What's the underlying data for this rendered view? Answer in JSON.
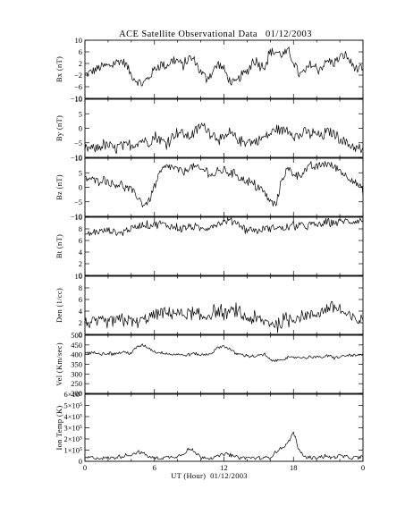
{
  "chart_data": {
    "type": "line",
    "title": "ACE Satellite Observational Data   01/12/2003",
    "xlabel": "UT (Hour)  01/12/2003",
    "x_tick_labels": [
      "0",
      "6",
      "12",
      "18",
      "0"
    ],
    "xlim": [
      0,
      24
    ],
    "grid": false,
    "panels": [
      {
        "ylabel": "Bx (nT)",
        "ylim": [
          -10,
          10
        ],
        "y_ticks": [
          -10,
          -6,
          -2,
          2,
          6,
          10
        ],
        "y_tick_labels": [
          "−10",
          "−6",
          "−2",
          "2",
          "6",
          "10"
        ],
        "x": [
          0,
          0.5,
          1,
          1.5,
          2,
          2.5,
          3,
          3.5,
          4,
          4.5,
          5,
          5.5,
          6,
          6.5,
          7,
          7.5,
          8,
          8.5,
          9,
          9.5,
          10,
          10.5,
          11,
          11.5,
          12,
          12.5,
          13,
          13.5,
          14,
          14.5,
          15,
          15.5,
          16,
          16.5,
          17,
          17.5,
          18,
          18.5,
          19,
          19.5,
          20,
          20.5,
          21,
          21.5,
          22,
          22.5,
          23,
          23.5,
          24
        ],
        "y": [
          -2,
          -1,
          0,
          1,
          1,
          2,
          3,
          2,
          -2,
          -4,
          -5,
          -3,
          0,
          2,
          1,
          3,
          3,
          1,
          4,
          3,
          -1,
          -3,
          -1,
          2,
          0,
          -4,
          -5,
          -2,
          -1,
          3,
          2,
          1,
          6,
          6,
          5,
          6,
          3,
          -2,
          -1,
          2,
          0,
          1,
          3,
          2,
          4,
          5,
          2,
          0,
          -1
        ],
        "noise": 1.5
      },
      {
        "ylabel": "By (nT)",
        "ylim": [
          -10,
          10
        ],
        "y_ticks": [
          -10,
          -5,
          0,
          5,
          10
        ],
        "y_tick_labels": [
          "−10",
          "−5",
          "0",
          "5",
          "10"
        ],
        "x": [
          0,
          0.5,
          1,
          1.5,
          2,
          2.5,
          3,
          3.5,
          4,
          4.5,
          5,
          5.5,
          6,
          6.5,
          7,
          7.5,
          8,
          8.5,
          9,
          9.5,
          10,
          10.5,
          11,
          11.5,
          12,
          12.5,
          13,
          13.5,
          14,
          14.5,
          15,
          15.5,
          16,
          16.5,
          17,
          17.5,
          18,
          18.5,
          19,
          19.5,
          20,
          20.5,
          21,
          21.5,
          22,
          22.5,
          23,
          23.5,
          24
        ],
        "y": [
          -7,
          -7,
          -7,
          -6,
          -6,
          -7,
          -6,
          -6,
          -6,
          -5,
          -4,
          -5,
          -3,
          -4,
          -5,
          -3,
          -1,
          -2,
          -3,
          -1,
          1,
          0,
          -2,
          -3,
          -4,
          -2,
          -3,
          -5,
          -4,
          -5,
          -4,
          -3,
          -2,
          0,
          -1,
          0,
          -2,
          -3,
          -1,
          -2,
          -2,
          -3,
          -1,
          -2,
          -3,
          -5,
          -6,
          -7,
          -8
        ],
        "noise": 1.6
      },
      {
        "ylabel": "Bz (nT)",
        "ylim": [
          -10,
          10
        ],
        "y_ticks": [
          -10,
          -5,
          0,
          5,
          10
        ],
        "y_tick_labels": [
          "−10",
          "−5",
          "0",
          "5",
          "10"
        ],
        "x": [
          0,
          0.5,
          1,
          1.5,
          2,
          2.5,
          3,
          3.5,
          4,
          4.5,
          5,
          5.5,
          6,
          6.5,
          7,
          7.5,
          8,
          8.5,
          9,
          9.5,
          10,
          10.5,
          11,
          11.5,
          12,
          12.5,
          13,
          13.5,
          14,
          14.5,
          15,
          15.5,
          16,
          16.5,
          17,
          17.5,
          18,
          18.5,
          19,
          19.5,
          20,
          20.5,
          21,
          21.5,
          22,
          22.5,
          23,
          23.5,
          24
        ],
        "y": [
          3,
          3,
          2,
          3,
          2,
          1,
          1,
          0,
          -1,
          -3,
          -6,
          -5,
          0,
          5,
          7,
          7,
          6,
          5,
          7,
          7,
          6,
          6,
          4,
          5,
          6,
          5,
          5,
          3,
          2,
          1,
          0,
          -2,
          -5,
          -6,
          3,
          6,
          5,
          4,
          6,
          7,
          7,
          8,
          8,
          7,
          6,
          4,
          3,
          1,
          -1
        ],
        "noise": 1.3
      },
      {
        "ylabel": "Bt (nT)",
        "ylim": [
          0,
          10
        ],
        "y_ticks": [
          0,
          2,
          4,
          6,
          8,
          10
        ],
        "y_tick_labels": [
          "0",
          "2",
          "4",
          "6",
          "8",
          "10"
        ],
        "x": [
          0,
          0.5,
          1,
          1.5,
          2,
          2.5,
          3,
          3.5,
          4,
          4.5,
          5,
          5.5,
          6,
          6.5,
          7,
          7.5,
          8,
          8.5,
          9,
          9.5,
          10,
          10.5,
          11,
          11.5,
          12,
          12.5,
          13,
          13.5,
          14,
          14.5,
          15,
          15.5,
          16,
          16.5,
          17,
          17.5,
          18,
          18.5,
          19,
          19.5,
          20,
          20.5,
          21,
          21.5,
          22,
          22.5,
          23,
          23.5,
          24
        ],
        "y": [
          7,
          7.2,
          7.5,
          7.6,
          7.8,
          7.5,
          7.2,
          7.8,
          8,
          8.4,
          8.8,
          8.5,
          8.8,
          9,
          8.6,
          8.4,
          8.2,
          8,
          8.4,
          8.2,
          8,
          8.2,
          8.6,
          8.9,
          9.2,
          9.5,
          9.3,
          8.5,
          7.8,
          8,
          7.5,
          8.2,
          8,
          8.4,
          8,
          8.2,
          8.5,
          8.6,
          8.4,
          8.8,
          8.6,
          8.9,
          9,
          9.1,
          9.2,
          9.4,
          9.2,
          9.4,
          9.5
        ],
        "noise": 0.55
      },
      {
        "ylabel": "Den (1/cc)",
        "ylim": [
          0,
          10
        ],
        "y_ticks": [
          0,
          2,
          4,
          6,
          8,
          10
        ],
        "y_tick_labels": [
          "0",
          "2",
          "4",
          "6",
          "8",
          "10"
        ],
        "x": [
          0,
          0.5,
          1,
          1.5,
          2,
          2.5,
          3,
          3.5,
          4,
          4.5,
          5,
          5.5,
          6,
          6.5,
          7,
          7.5,
          8,
          8.5,
          9,
          9.5,
          10,
          10.5,
          11,
          11.5,
          12,
          12.5,
          13,
          13.5,
          14,
          14.5,
          15,
          15.5,
          16,
          16.5,
          17,
          17.5,
          18,
          18.5,
          19,
          19.5,
          20,
          20.5,
          21,
          21.5,
          22,
          22.5,
          23,
          23.5,
          24
        ],
        "y": [
          2,
          2,
          2,
          2.2,
          2,
          2.2,
          2.4,
          2.6,
          2.2,
          2,
          2.4,
          3,
          3.2,
          3.8,
          3.4,
          4,
          3.6,
          3.4,
          3.6,
          3.2,
          2.8,
          3.2,
          3.6,
          4,
          3.4,
          3.8,
          4,
          3.2,
          2.8,
          2.6,
          2.4,
          2.2,
          2,
          1.8,
          2,
          2.6,
          2.8,
          3,
          3.4,
          3.2,
          3.6,
          4,
          4.6,
          4.8,
          4.2,
          3.4,
          2.8,
          2.4,
          2.6
        ],
        "noise": 1.0
      },
      {
        "ylabel": "Vel (Km/sec)",
        "ylim": [
          200,
          500
        ],
        "y_ticks": [
          200,
          250,
          300,
          350,
          400,
          450,
          500
        ],
        "y_tick_labels": [
          "200",
          "250",
          "300",
          "350",
          "400",
          "450",
          "500"
        ],
        "x": [
          0,
          0.5,
          1,
          1.5,
          2,
          2.5,
          3,
          3.5,
          4,
          4.5,
          5,
          5.5,
          6,
          6.5,
          7,
          7.5,
          8,
          8.5,
          9,
          9.5,
          10,
          10.5,
          11,
          11.5,
          12,
          12.5,
          13,
          13.5,
          14,
          14.5,
          15,
          15.5,
          16,
          16.5,
          17,
          17.5,
          18,
          18.5,
          19,
          19.5,
          20,
          20.5,
          21,
          21.5,
          22,
          22.5,
          23,
          23.5,
          24
        ],
        "y": [
          410,
          408,
          412,
          405,
          408,
          403,
          410,
          412,
          408,
          440,
          450,
          435,
          415,
          410,
          408,
          400,
          404,
          395,
          402,
          406,
          398,
          401,
          410,
          438,
          445,
          430,
          405,
          400,
          396,
          390,
          395,
          400,
          372,
          368,
          378,
          381,
          385,
          388,
          382,
          392,
          386,
          388,
          392,
          384,
          388,
          394,
          397,
          395,
          400
        ],
        "noise": 7
      },
      {
        "ylabel": "Ion Temp (K)",
        "ylim": [
          0,
          600000
        ],
        "y_ticks": [
          0,
          100000,
          200000,
          300000,
          400000,
          500000,
          600000
        ],
        "y_tick_labels": [
          "0",
          "1×10⁵",
          "2×10⁵",
          "3×10⁵",
          "4×10⁵",
          "5×10⁵",
          "6×10⁵"
        ],
        "x": [
          0,
          0.5,
          1,
          1.5,
          2,
          2.5,
          3,
          3.5,
          4,
          4.5,
          5,
          5.5,
          6,
          6.5,
          7,
          7.5,
          8,
          8.5,
          9,
          9.5,
          10,
          10.5,
          11,
          11.5,
          12,
          12.5,
          13,
          13.5,
          14,
          14.5,
          15,
          15.5,
          16,
          16.5,
          17,
          17.5,
          18,
          18.5,
          19,
          19.5,
          20,
          20.5,
          21,
          21.5,
          22,
          22.5,
          23,
          23.5,
          24
        ],
        "y": [
          30000,
          35000,
          30000,
          28000,
          32000,
          30000,
          45000,
          50000,
          60000,
          80000,
          75000,
          40000,
          30000,
          28000,
          35000,
          40000,
          45000,
          70000,
          110000,
          80000,
          40000,
          35000,
          30000,
          45000,
          70000,
          55000,
          40000,
          35000,
          30000,
          32000,
          28000,
          30000,
          35000,
          90000,
          120000,
          160000,
          260000,
          90000,
          40000,
          30000,
          35000,
          45000,
          40000,
          35000,
          50000,
          40000,
          30000,
          35000,
          30000
        ],
        "noise": 14000
      }
    ]
  }
}
